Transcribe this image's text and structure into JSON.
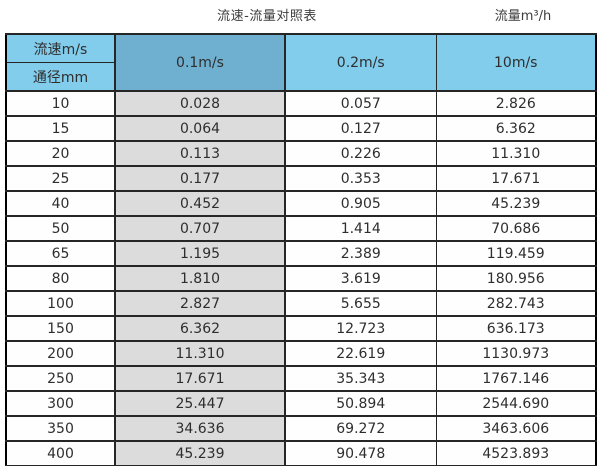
{
  "page": {
    "title": "流速-流量对照表",
    "unit_label": "流量m³/h"
  },
  "table": {
    "corner": {
      "top": "流速m/s",
      "bottom": "通径mm"
    },
    "columns": [
      "0.1m/s",
      "0.2m/s",
      "10m/s"
    ],
    "rows": [
      {
        "diameter": "10",
        "values": [
          "0.028",
          "0.057",
          "2.826"
        ]
      },
      {
        "diameter": "15",
        "values": [
          "0.064",
          "0.127",
          "6.362"
        ]
      },
      {
        "diameter": "20",
        "values": [
          "0.113",
          "0.226",
          "11.310"
        ]
      },
      {
        "diameter": "25",
        "values": [
          "0.177",
          "0.353",
          "17.671"
        ]
      },
      {
        "diameter": "40",
        "values": [
          "0.452",
          "0.905",
          "45.239"
        ]
      },
      {
        "diameter": "50",
        "values": [
          "0.707",
          "1.414",
          "70.686"
        ]
      },
      {
        "diameter": "65",
        "values": [
          "1.195",
          "2.389",
          "119.459"
        ]
      },
      {
        "diameter": "80",
        "values": [
          "1.810",
          "3.619",
          "180.956"
        ]
      },
      {
        "diameter": "100",
        "values": [
          "2.827",
          "5.655",
          "282.743"
        ]
      },
      {
        "diameter": "150",
        "values": [
          "6.362",
          "12.723",
          "636.173"
        ]
      },
      {
        "diameter": "200",
        "values": [
          "11.310",
          "22.619",
          "1130.973"
        ]
      },
      {
        "diameter": "250",
        "values": [
          "17.671",
          "35.343",
          "1767.146"
        ]
      },
      {
        "diameter": "300",
        "values": [
          "25.447",
          "50.894",
          "2544.690"
        ]
      },
      {
        "diameter": "350",
        "values": [
          "34.636",
          "69.272",
          "3463.606"
        ]
      },
      {
        "diameter": "400",
        "values": [
          "45.239",
          "90.478",
          "4523.893"
        ]
      }
    ]
  },
  "colors": {
    "header_sky_blue": "#82CCEC",
    "header_steel_blue": "#6FB0D0",
    "highlight_column_gray": "#DCDCDC",
    "border_dark": "#262626"
  },
  "chart_data": {
    "type": "table",
    "title": "流速-流量对照表",
    "unit_label": "流量m³/h",
    "category_label": "通径mm",
    "series_label": "流速m/s",
    "categories": [
      10,
      15,
      20,
      25,
      40,
      50,
      65,
      80,
      100,
      150,
      200,
      250,
      300,
      350,
      400
    ],
    "series": [
      {
        "name": "0.1m/s",
        "values": [
          0.028,
          0.064,
          0.113,
          0.177,
          0.452,
          0.707,
          1.195,
          1.81,
          2.827,
          6.362,
          11.31,
          17.671,
          25.447,
          34.636,
          45.239
        ]
      },
      {
        "name": "0.2m/s",
        "values": [
          0.057,
          0.127,
          0.226,
          0.353,
          0.905,
          1.414,
          2.389,
          3.619,
          5.655,
          12.723,
          22.619,
          35.343,
          50.894,
          69.272,
          90.478
        ]
      },
      {
        "name": "10m/s",
        "values": [
          2.826,
          6.362,
          11.31,
          17.671,
          45.239,
          70.686,
          119.459,
          180.956,
          282.743,
          636.173,
          1130.973,
          1767.146,
          2544.69,
          3463.606,
          4523.893
        ]
      }
    ]
  }
}
